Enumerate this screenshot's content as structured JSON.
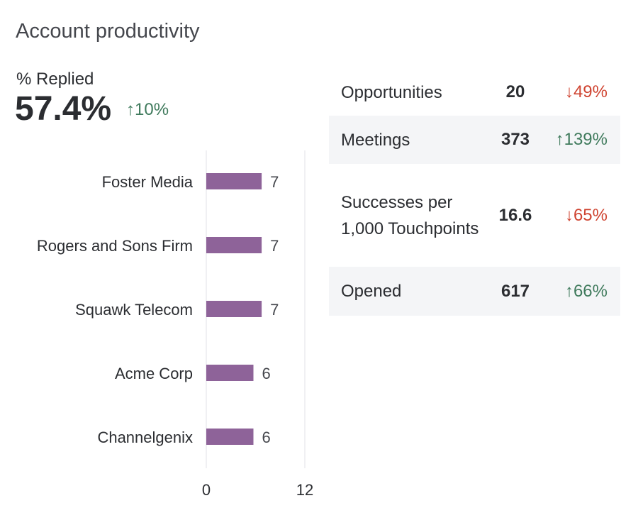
{
  "title": "Account productivity",
  "kpi": {
    "label": "% Replied",
    "value": "57.4%",
    "delta": "↑10%",
    "direction": "up"
  },
  "colors": {
    "bar": "#8e6399",
    "up": "#3f7a5c",
    "down": "#cf4330",
    "alt_row": "#f4f5f7"
  },
  "metrics": [
    {
      "label": "Opportunities",
      "value": "20",
      "delta": "↓49%",
      "direction": "down"
    },
    {
      "label": "Meetings",
      "value": "373",
      "delta": "↑139%",
      "direction": "up"
    },
    {
      "label": "Successes per 1,000 Touchpoints",
      "value": "16.6",
      "delta": "↓65%",
      "direction": "down"
    },
    {
      "label": "Opened",
      "value": "617",
      "delta": "↑66%",
      "direction": "up"
    }
  ],
  "chart_data": {
    "type": "bar",
    "orientation": "horizontal",
    "categories": [
      "Foster Media",
      "Rogers and Sons Firm",
      "Squawk Telecom",
      "Acme Corp",
      "Channelgenix"
    ],
    "values": [
      7,
      7,
      7,
      6,
      6
    ],
    "xlim": [
      0,
      12
    ],
    "xticks": [
      "0",
      "12"
    ],
    "grid": true,
    "data_labels": true
  }
}
